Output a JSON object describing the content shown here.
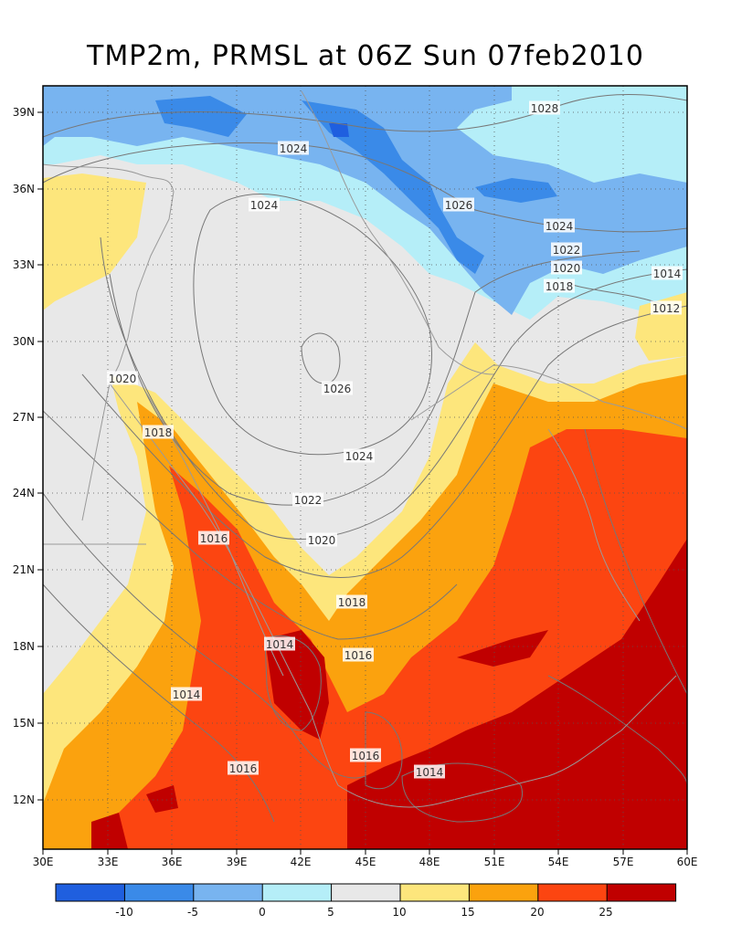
{
  "title": "TMP2m, PRMSL at 06Z Sun 07feb2010",
  "map": {
    "lon_ticks": [
      "30E",
      "33E",
      "36E",
      "39E",
      "42E",
      "45E",
      "48E",
      "51E",
      "54E",
      "57E",
      "60E"
    ],
    "lat_ticks": [
      "39N",
      "36N",
      "33N",
      "30N",
      "27N",
      "24N",
      "21N",
      "18N",
      "15N",
      "12N"
    ],
    "lon_range": [
      30,
      60
    ],
    "lat_range": [
      10.3,
      40
    ],
    "isobar_labels": [
      "1028",
      "1024",
      "1024",
      "1026",
      "1024",
      "1022",
      "1020",
      "1018",
      "1014",
      "1012",
      "1020",
      "1026",
      "1018",
      "1024",
      "1022",
      "1020",
      "1016",
      "1018",
      "1014",
      "1016",
      "1014",
      "1016",
      "1016",
      "1014"
    ]
  },
  "colorbar": {
    "colors": [
      "#1f5fdf",
      "#3a8ae8",
      "#78b4f0",
      "#b5eef8",
      "#e8e8e8",
      "#fde67c",
      "#fba20e",
      "#fc4511",
      "#c00000"
    ],
    "labels": [
      "-10",
      "-5",
      "0",
      "5",
      "10",
      "15",
      "20",
      "25"
    ]
  }
}
